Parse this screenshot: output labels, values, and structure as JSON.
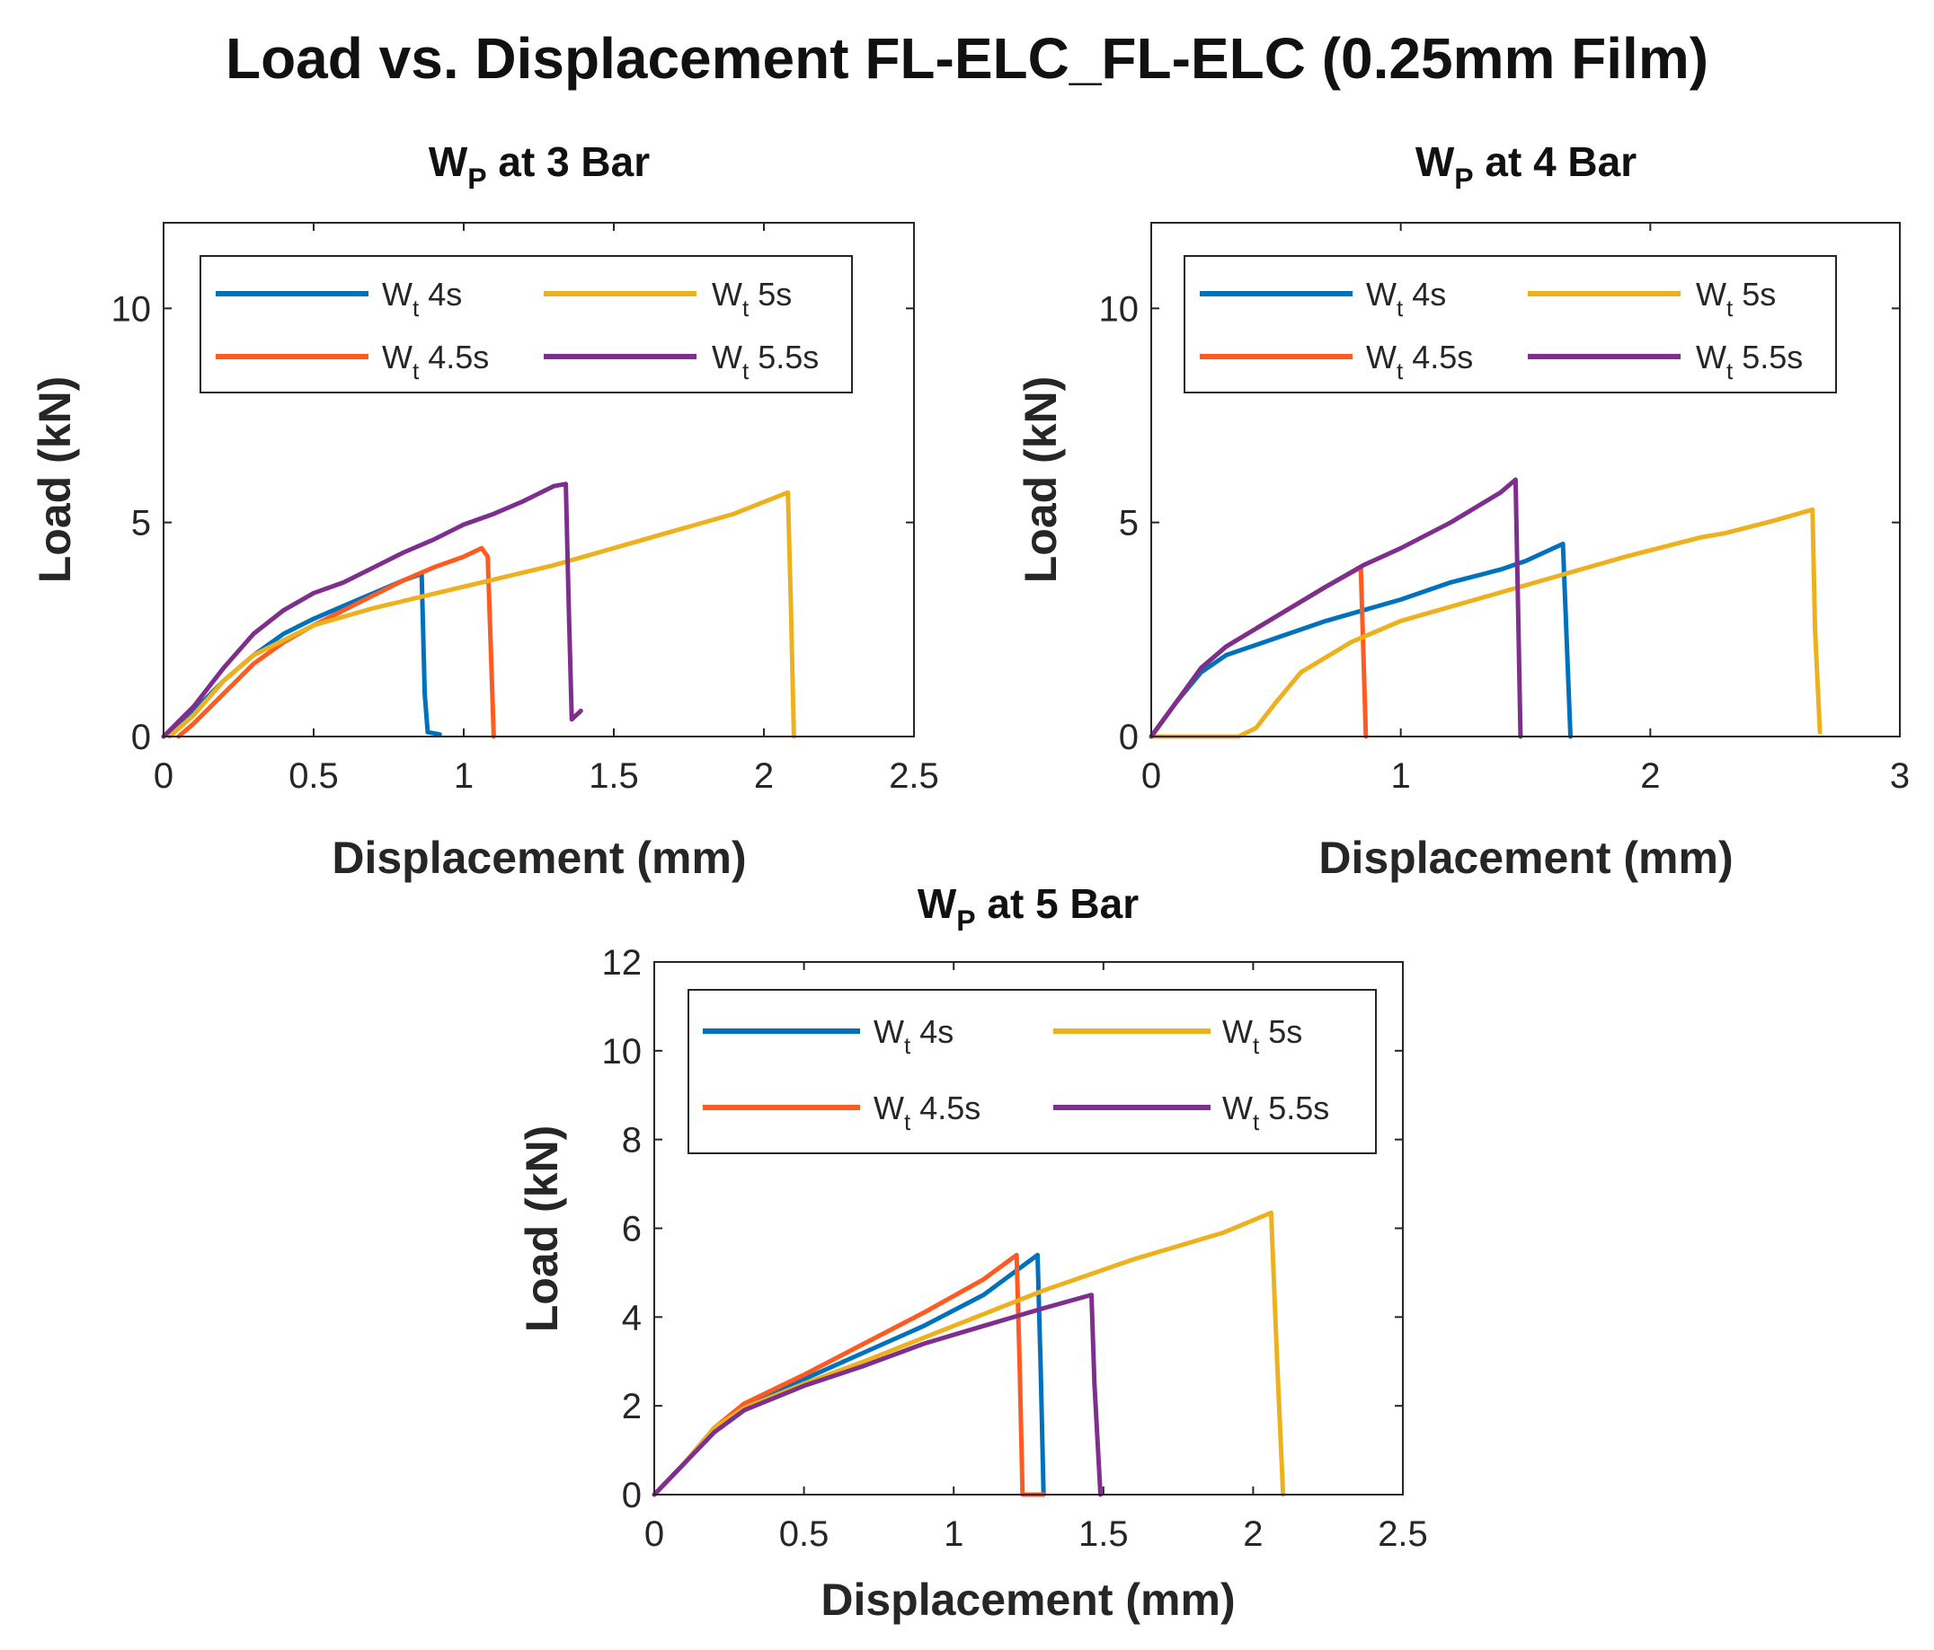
{
  "figure_title": "Load vs. Displacement FL-ELC_FL-ELC (0.25mm Film)",
  "colors": {
    "Wt 4s": "#0072BD",
    "Wt 4.5s": "#FF5A1F",
    "Wt 5s": "#EDB120",
    "Wt 5.5s": "#7E2F8E"
  },
  "chart_data": [
    {
      "type": "line",
      "title": {
        "main": "W",
        "sub": "P",
        "rest": " at 3 Bar"
      },
      "xlabel": "Displacement (mm)",
      "ylabel": "Load (kN)",
      "xlim": [
        0,
        2.5
      ],
      "ylim": [
        0,
        12
      ],
      "xticks": [
        "0",
        "0.5",
        "1",
        "1.5",
        "2",
        "2.5"
      ],
      "yticks": [
        "0",
        "5",
        "10"
      ],
      "ytick_values": [
        0,
        5,
        10
      ],
      "legend_position": "top",
      "series": [
        {
          "name": "Wt 4s",
          "label": {
            "main": "W",
            "sub": "t",
            "rest": " 4s"
          },
          "color": "#0072BD",
          "points": [
            [
              0,
              0
            ],
            [
              0.1,
              0.6
            ],
            [
              0.2,
              1.3
            ],
            [
              0.3,
              1.9
            ],
            [
              0.4,
              2.4
            ],
            [
              0.5,
              2.75
            ],
            [
              0.6,
              3.05
            ],
            [
              0.7,
              3.35
            ],
            [
              0.8,
              3.65
            ],
            [
              0.86,
              3.8
            ],
            [
              0.87,
              1.0
            ],
            [
              0.88,
              0.1
            ],
            [
              0.92,
              0.05
            ]
          ]
        },
        {
          "name": "Wt 4.5s",
          "label": {
            "main": "W",
            "sub": "t",
            "rest": " 4.5s"
          },
          "color": "#FF5A1F",
          "points": [
            [
              0.05,
              0
            ],
            [
              0.1,
              0.3
            ],
            [
              0.2,
              1.0
            ],
            [
              0.3,
              1.7
            ],
            [
              0.4,
              2.2
            ],
            [
              0.5,
              2.6
            ],
            [
              0.6,
              2.95
            ],
            [
              0.7,
              3.3
            ],
            [
              0.8,
              3.65
            ],
            [
              0.9,
              3.95
            ],
            [
              1.0,
              4.2
            ],
            [
              1.06,
              4.4
            ],
            [
              1.08,
              4.2
            ],
            [
              1.1,
              0
            ]
          ]
        },
        {
          "name": "Wt 5s",
          "label": {
            "main": "W",
            "sub": "t",
            "rest": " 5s"
          },
          "color": "#EDB120",
          "points": [
            [
              0.02,
              0
            ],
            [
              0.1,
              0.5
            ],
            [
              0.2,
              1.3
            ],
            [
              0.3,
              1.9
            ],
            [
              0.5,
              2.6
            ],
            [
              0.7,
              3.0
            ],
            [
              1.0,
              3.5
            ],
            [
              1.3,
              4.0
            ],
            [
              1.6,
              4.6
            ],
            [
              1.9,
              5.2
            ],
            [
              2.08,
              5.7
            ],
            [
              2.09,
              3.0
            ],
            [
              2.1,
              0
            ]
          ]
        },
        {
          "name": "Wt 5.5s",
          "label": {
            "main": "W",
            "sub": "t",
            "rest": " 5.5s"
          },
          "color": "#7E2F8E",
          "points": [
            [
              0,
              0
            ],
            [
              0.1,
              0.7
            ],
            [
              0.2,
              1.6
            ],
            [
              0.3,
              2.4
            ],
            [
              0.4,
              2.95
            ],
            [
              0.5,
              3.35
            ],
            [
              0.6,
              3.6
            ],
            [
              0.7,
              3.95
            ],
            [
              0.8,
              4.3
            ],
            [
              0.9,
              4.6
            ],
            [
              1.0,
              4.95
            ],
            [
              1.1,
              5.2
            ],
            [
              1.2,
              5.5
            ],
            [
              1.3,
              5.85
            ],
            [
              1.34,
              5.9
            ],
            [
              1.35,
              3.0
            ],
            [
              1.36,
              0.4
            ],
            [
              1.39,
              0.6
            ]
          ]
        }
      ]
    },
    {
      "type": "line",
      "title": {
        "main": "W",
        "sub": "P",
        "rest": " at 4 Bar"
      },
      "xlabel": "Displacement (mm)",
      "ylabel": "Load (kN)",
      "xlim": [
        0,
        3
      ],
      "ylim": [
        0,
        12
      ],
      "xticks": [
        "0",
        "1",
        "2",
        "3"
      ],
      "yticks": [
        "0",
        "5",
        "10"
      ],
      "ytick_values": [
        0,
        5,
        10
      ],
      "legend_position": "top",
      "series": [
        {
          "name": "Wt 4s",
          "label": {
            "main": "W",
            "sub": "t",
            "rest": " 4s"
          },
          "color": "#0072BD",
          "points": [
            [
              0,
              0
            ],
            [
              0.1,
              0.8
            ],
            [
              0.2,
              1.5
            ],
            [
              0.3,
              1.9
            ],
            [
              0.5,
              2.3
            ],
            [
              0.7,
              2.7
            ],
            [
              1.0,
              3.2
            ],
            [
              1.2,
              3.6
            ],
            [
              1.4,
              3.9
            ],
            [
              1.5,
              4.1
            ],
            [
              1.65,
              4.5
            ],
            [
              1.66,
              3.0
            ],
            [
              1.68,
              0
            ]
          ]
        },
        {
          "name": "Wt 4.5s",
          "label": {
            "main": "W",
            "sub": "t",
            "rest": " 4.5s"
          },
          "color": "#FF5A1F",
          "points": [
            [
              0,
              0
            ],
            [
              0.1,
              0.8
            ],
            [
              0.2,
              1.6
            ],
            [
              0.3,
              2.1
            ],
            [
              0.5,
              2.8
            ],
            [
              0.7,
              3.5
            ],
            [
              0.84,
              3.95
            ],
            [
              0.85,
              2.0
            ],
            [
              0.86,
              0
            ]
          ]
        },
        {
          "name": "Wt 5s",
          "label": {
            "main": "W",
            "sub": "t",
            "rest": " 5s"
          },
          "color": "#EDB120",
          "points": [
            [
              0,
              0
            ],
            [
              0.35,
              0
            ],
            [
              0.42,
              0.2
            ],
            [
              0.5,
              0.8
            ],
            [
              0.6,
              1.5
            ],
            [
              0.8,
              2.2
            ],
            [
              1.0,
              2.7
            ],
            [
              1.3,
              3.2
            ],
            [
              1.6,
              3.7
            ],
            [
              1.9,
              4.2
            ],
            [
              2.2,
              4.65
            ],
            [
              2.3,
              4.75
            ],
            [
              2.5,
              5.05
            ],
            [
              2.65,
              5.3
            ],
            [
              2.66,
              2.5
            ],
            [
              2.68,
              0.1
            ]
          ]
        },
        {
          "name": "Wt 5.5s",
          "label": {
            "main": "W",
            "sub": "t",
            "rest": " 5.5s"
          },
          "color": "#7E2F8E",
          "points": [
            [
              0,
              0
            ],
            [
              0.1,
              0.8
            ],
            [
              0.2,
              1.6
            ],
            [
              0.3,
              2.1
            ],
            [
              0.5,
              2.8
            ],
            [
              0.7,
              3.5
            ],
            [
              0.85,
              4.0
            ],
            [
              1.0,
              4.4
            ],
            [
              1.2,
              5.0
            ],
            [
              1.4,
              5.7
            ],
            [
              1.46,
              6.0
            ],
            [
              1.47,
              3.0
            ],
            [
              1.48,
              0
            ]
          ]
        }
      ]
    },
    {
      "type": "line",
      "title": {
        "main": "W",
        "sub": "P",
        "rest": " at 5 Bar"
      },
      "xlabel": "Displacement (mm)",
      "ylabel": "Load (kN)",
      "xlim": [
        0,
        2.5
      ],
      "ylim": [
        0,
        12
      ],
      "xticks": [
        "0",
        "0.5",
        "1",
        "1.5",
        "2",
        "2.5"
      ],
      "yticks": [
        "0",
        "2",
        "4",
        "6",
        "8",
        "10",
        "12"
      ],
      "ytick_values": [
        0,
        2,
        4,
        6,
        8,
        10,
        12
      ],
      "legend_position": "top",
      "series": [
        {
          "name": "Wt 4s",
          "label": {
            "main": "W",
            "sub": "t",
            "rest": " 4s"
          },
          "color": "#0072BD",
          "points": [
            [
              0,
              0
            ],
            [
              0.1,
              0.7
            ],
            [
              0.2,
              1.5
            ],
            [
              0.3,
              2.0
            ],
            [
              0.5,
              2.6
            ],
            [
              0.7,
              3.2
            ],
            [
              0.9,
              3.8
            ],
            [
              1.1,
              4.5
            ],
            [
              1.28,
              5.4
            ],
            [
              1.29,
              3.0
            ],
            [
              1.3,
              0
            ]
          ]
        },
        {
          "name": "Wt 4.5s",
          "label": {
            "main": "W",
            "sub": "t",
            "rest": " 4.5s"
          },
          "color": "#FF5A1F",
          "points": [
            [
              0,
              0
            ],
            [
              0.1,
              0.7
            ],
            [
              0.2,
              1.5
            ],
            [
              0.3,
              2.05
            ],
            [
              0.5,
              2.7
            ],
            [
              0.7,
              3.4
            ],
            [
              0.9,
              4.1
            ],
            [
              1.1,
              4.85
            ],
            [
              1.21,
              5.4
            ],
            [
              1.22,
              3.0
            ],
            [
              1.23,
              0
            ],
            [
              1.3,
              0
            ]
          ]
        },
        {
          "name": "Wt 5s",
          "label": {
            "main": "W",
            "sub": "t",
            "rest": " 5s"
          },
          "color": "#EDB120",
          "points": [
            [
              0,
              0
            ],
            [
              0.1,
              0.7
            ],
            [
              0.2,
              1.5
            ],
            [
              0.3,
              1.95
            ],
            [
              0.5,
              2.5
            ],
            [
              0.7,
              3.0
            ],
            [
              1.0,
              3.8
            ],
            [
              1.3,
              4.6
            ],
            [
              1.6,
              5.3
            ],
            [
              1.9,
              5.9
            ],
            [
              2.06,
              6.35
            ],
            [
              2.08,
              3.0
            ],
            [
              2.1,
              0
            ]
          ]
        },
        {
          "name": "Wt 5.5s",
          "label": {
            "main": "W",
            "sub": "t",
            "rest": " 5.5s"
          },
          "color": "#7E2F8E",
          "points": [
            [
              0,
              0
            ],
            [
              0.1,
              0.7
            ],
            [
              0.2,
              1.4
            ],
            [
              0.3,
              1.9
            ],
            [
              0.5,
              2.45
            ],
            [
              0.7,
              2.9
            ],
            [
              0.9,
              3.4
            ],
            [
              1.1,
              3.8
            ],
            [
              1.3,
              4.2
            ],
            [
              1.46,
              4.5
            ],
            [
              1.47,
              2.5
            ],
            [
              1.49,
              0
            ]
          ]
        }
      ]
    }
  ]
}
